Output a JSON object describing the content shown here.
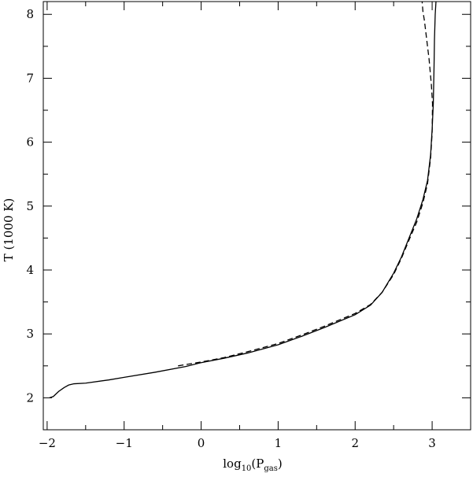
{
  "chart_data": {
    "type": "line",
    "title": "",
    "xlabel": {
      "base": "log",
      "base_sub": "10",
      "open": "(P",
      "var_sub": "gas",
      "close": ")"
    },
    "ylabel": "T (1000 K)",
    "xlim": [
      -2.05,
      3.5
    ],
    "ylim": [
      1.5,
      8.2
    ],
    "x_ticks": [
      -2,
      -1,
      0,
      1,
      2,
      3
    ],
    "x_tick_labels": [
      "−2",
      "−1",
      "0",
      "1",
      "2",
      "3"
    ],
    "x_minor_ticks": [
      -1.5,
      -0.5,
      0.5,
      1.5,
      2.5,
      3.5
    ],
    "y_ticks": [
      2,
      3,
      4,
      5,
      6,
      7,
      8
    ],
    "y_tick_labels": [
      "2",
      "3",
      "4",
      "5",
      "6",
      "7",
      "8"
    ],
    "y_minor_ticks": [
      1.5,
      2.5,
      3.5,
      4.5,
      5.5,
      6.5,
      7.5
    ],
    "grid": false,
    "legend": "none",
    "series": [
      {
        "style": "solid",
        "color": "#000000",
        "x": [
          -1.97,
          -1.92,
          -1.85,
          -1.78,
          -1.72,
          -1.65,
          -1.5,
          -1.2,
          -1.0,
          -0.6,
          -0.2,
          0.0,
          0.3,
          0.6,
          1.0,
          1.3,
          1.6,
          2.0,
          2.2,
          2.35,
          2.5,
          2.6,
          2.7,
          2.8,
          2.88,
          2.94,
          2.98,
          3.0,
          3.015,
          3.025,
          3.03,
          3.04,
          3.05
        ],
        "y": [
          2.0,
          2.02,
          2.1,
          2.16,
          2.2,
          2.22,
          2.23,
          2.28,
          2.32,
          2.4,
          2.49,
          2.55,
          2.62,
          2.7,
          2.83,
          2.96,
          3.1,
          3.3,
          3.45,
          3.65,
          3.95,
          4.2,
          4.5,
          4.8,
          5.1,
          5.4,
          5.8,
          6.2,
          6.6,
          7.2,
          7.6,
          8.0,
          8.2
        ]
      },
      {
        "style": "dashed",
        "color": "#000000",
        "x": [
          -0.3,
          0.0,
          0.3,
          0.6,
          1.0,
          1.3,
          1.6,
          2.0,
          2.2,
          2.35,
          2.5,
          2.6,
          2.7,
          2.8,
          2.88,
          2.94,
          2.98,
          3.0,
          3.005,
          2.99,
          2.96,
          2.93,
          2.9,
          2.88,
          2.87
        ],
        "y": [
          2.5,
          2.56,
          2.63,
          2.72,
          2.85,
          2.98,
          3.12,
          3.32,
          3.46,
          3.65,
          3.93,
          4.18,
          4.47,
          4.75,
          5.05,
          5.35,
          5.75,
          6.15,
          6.6,
          6.9,
          7.3,
          7.6,
          7.9,
          8.05,
          8.2
        ]
      }
    ]
  }
}
